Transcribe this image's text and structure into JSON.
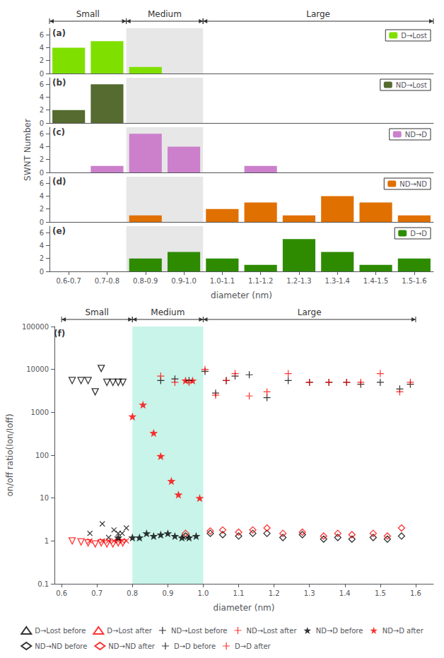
{
  "chart_data": [
    {
      "type": "bar",
      "title": "(a)",
      "categories": [
        "0.6-0.7",
        "0.7-0.8",
        "0.8-0.9",
        "0.9-1.0",
        "1.0-1.1",
        "1.1-1.2",
        "1.2-1.3",
        "1.3-1.4",
        "1.4-1.5",
        "1.5-1.6"
      ],
      "series": [
        {
          "name": "D→Lost",
          "color": "#7FE000",
          "values": [
            4,
            5,
            1,
            0,
            0,
            0,
            0,
            0,
            0,
            0
          ]
        }
      ],
      "ylim": [
        0,
        7
      ],
      "yticks": [
        0,
        2,
        4,
        6
      ],
      "grid": false,
      "legend": "upper right",
      "tick_labels": "y",
      "regions": [
        {
          "label": "Small",
          "from": "0.6-0.7",
          "to": "0.7-0.8"
        },
        {
          "label": "Medium",
          "from": "0.8-0.9",
          "to": "0.9-1.0",
          "color": "#D3D3D3"
        },
        {
          "label": "Large",
          "from": "1.0-1.1",
          "to": "1.5-1.6"
        }
      ]
    },
    {
      "type": "bar",
      "title": "(b)",
      "categories": [
        "0.6-0.7",
        "0.7-0.8",
        "0.8-0.9",
        "0.9-1.0",
        "1.0-1.1",
        "1.1-1.2",
        "1.2-1.3",
        "1.3-1.4",
        "1.4-1.5",
        "1.5-1.6"
      ],
      "series": [
        {
          "name": "ND→Lost",
          "color": "#556B2F",
          "values": [
            2,
            6,
            0,
            0,
            0,
            0,
            0,
            0,
            0,
            0
          ]
        }
      ],
      "ylim": [
        0,
        7
      ],
      "yticks": [
        0,
        2,
        4,
        6
      ],
      "grid": false,
      "legend": "upper right",
      "tick_labels": "y",
      "regions": [
        {
          "from": "0.8-0.9",
          "to": "0.9-1.0",
          "color": "#D3D3D3"
        }
      ]
    },
    {
      "type": "bar",
      "title": "(c)",
      "ylabel": "SWNT Number",
      "categories": [
        "0.6-0.7",
        "0.7-0.8",
        "0.8-0.9",
        "0.9-1.0",
        "1.0-1.1",
        "1.1-1.2",
        "1.2-1.3",
        "1.3-1.4",
        "1.4-1.5",
        "1.5-1.6"
      ],
      "series": [
        {
          "name": "ND→D",
          "color": "#CC80CC",
          "values": [
            0,
            1,
            6,
            4,
            0,
            1,
            0,
            0,
            0,
            0
          ]
        }
      ],
      "ylim": [
        0,
        7
      ],
      "yticks": [
        0,
        2,
        4,
        6
      ],
      "grid": false,
      "legend": "upper right",
      "tick_labels": "y",
      "regions": [
        {
          "from": "0.8-0.9",
          "to": "0.9-1.0",
          "color": "#D3D3D3"
        }
      ]
    },
    {
      "type": "bar",
      "title": "(d)",
      "categories": [
        "0.6-0.7",
        "0.7-0.8",
        "0.8-0.9",
        "0.9-1.0",
        "1.0-1.1",
        "1.1-1.2",
        "1.2-1.3",
        "1.3-1.4",
        "1.4-1.5",
        "1.5-1.6"
      ],
      "series": [
        {
          "name": "ND→ND",
          "color": "#E07000",
          "values": [
            0,
            0,
            1,
            0,
            2,
            3,
            1,
            4,
            3,
            1
          ]
        }
      ],
      "ylim": [
        0,
        7
      ],
      "yticks": [
        0,
        2,
        4,
        6
      ],
      "grid": false,
      "legend": "upper right",
      "tick_labels": "y",
      "regions": [
        {
          "from": "0.8-0.9",
          "to": "0.9-1.0",
          "color": "#D3D3D3"
        }
      ]
    },
    {
      "type": "bar",
      "title": "(e)",
      "xlabel": "diameter (nm)",
      "categories": [
        "0.6-0.7",
        "0.7-0.8",
        "0.8-0.9",
        "0.9-1.0",
        "1.0-1.1",
        "1.1-1.2",
        "1.2-1.3",
        "1.3-1.4",
        "1.4-1.5",
        "1.5-1.6"
      ],
      "series": [
        {
          "name": "D→D",
          "color": "#2E8B00",
          "values": [
            0,
            0,
            2,
            3,
            2,
            1,
            5,
            3,
            1,
            2
          ]
        }
      ],
      "ylim": [
        0,
        7
      ],
      "yticks": [
        0,
        2,
        4,
        6
      ],
      "grid": false,
      "legend": "upper right",
      "regions": [
        {
          "from": "0.8-0.9",
          "to": "0.9-1.0",
          "color": "#D3D3D3"
        }
      ]
    },
    {
      "type": "scatter",
      "title": "(f)",
      "xlabel": "diameter (nm)",
      "ylabel": "on/off ratio(Ion/Ioff)",
      "log": "y",
      "xlim": [
        0.58,
        1.65
      ],
      "xticks": [
        0.6,
        0.7,
        0.8,
        0.9,
        {
          "value": 1.0,
          "label": "1.0"
        },
        1.1,
        1.2,
        1.3,
        1.4,
        1.5,
        1.6
      ],
      "ylim": [
        0.1,
        100000
      ],
      "yticks": [
        0.1,
        1,
        10,
        100,
        1000,
        10000,
        100000
      ],
      "grid": false,
      "legend": "bottom",
      "regions": [
        {
          "label": "Small",
          "x": [
            0.6,
            0.8
          ]
        },
        {
          "label": "Medium",
          "x": [
            0.8,
            1.0
          ],
          "color": "#AAEEDD"
        },
        {
          "label": "Large",
          "x": [
            1.0,
            1.6
          ]
        }
      ],
      "series": [
        {
          "name": "D→Lost before",
          "color": "black",
          "marker": "open_triangle_down",
          "x": [
            0.63,
            0.655,
            0.675,
            0.695,
            0.712,
            0.728,
            0.745,
            0.76,
            0.773
          ],
          "values": [
            5500,
            5500,
            5500,
            3000,
            10500,
            5000,
            5000,
            5000,
            5000
          ]
        },
        {
          "name": "D→Lost after",
          "color": "red",
          "marker": "open_triangle_down",
          "x": [
            0.63,
            0.655,
            0.675,
            0.695,
            0.712,
            0.728,
            0.745,
            0.76,
            0.773
          ],
          "values": [
            1.0,
            0.95,
            0.9,
            0.85,
            0.9,
            0.85,
            0.85,
            0.9,
            0.9
          ]
        },
        {
          "name": "ND→Lost before",
          "color": "black",
          "marker": "x",
          "x": [
            0.68,
            0.715,
            0.733,
            0.748,
            0.76,
            0.771,
            0.783
          ],
          "values": [
            1.5,
            2.5,
            1.2,
            1.8,
            1.5,
            1.5,
            2.0
          ]
        },
        {
          "name": "ND→Lost after",
          "color": "red",
          "marker": "x",
          "x": [
            0.68,
            0.715,
            0.733,
            0.748,
            0.76,
            0.771,
            0.783
          ],
          "values": [
            1.0,
            1.0,
            1.0,
            1.0,
            1.0,
            1.0,
            1.0
          ]
        },
        {
          "name": "ND→D before",
          "color": "black",
          "marker": "star",
          "x": [
            0.76,
            0.8,
            0.82,
            0.84,
            0.86,
            0.88,
            0.9,
            0.92,
            0.94,
            0.96,
            0.98
          ],
          "values": [
            1.2,
            1.2,
            1.2,
            1.5,
            1.3,
            1.4,
            1.5,
            1.3,
            1.2,
            1.2,
            1.3
          ]
        },
        {
          "name": "ND→D after",
          "color": "red",
          "marker": "star",
          "x": [
            0.8,
            0.83,
            0.86,
            0.88,
            0.91,
            0.93,
            0.95,
            0.97,
            0.99
          ],
          "values": [
            800,
            1500,
            330,
            95,
            25,
            12,
            5500,
            5500,
            10
          ]
        },
        {
          "name": "ND→ND before",
          "color": "black",
          "marker": "open_diamond",
          "x": [
            0.95,
            1.02,
            1.055,
            1.1,
            1.14,
            1.18,
            1.225,
            1.28,
            1.34,
            1.38,
            1.42,
            1.48,
            1.52,
            1.56
          ],
          "values": [
            1.3,
            1.5,
            1.4,
            1.3,
            1.5,
            1.5,
            1.2,
            1.4,
            1.1,
            1.2,
            1.1,
            1.2,
            1.1,
            1.3
          ]
        },
        {
          "name": "ND→ND after",
          "color": "red",
          "marker": "open_diamond",
          "x": [
            0.95,
            1.02,
            1.055,
            1.1,
            1.14,
            1.18,
            1.225,
            1.28,
            1.34,
            1.38,
            1.42,
            1.48,
            1.52,
            1.56
          ],
          "values": [
            1.5,
            1.7,
            1.8,
            1.6,
            1.8,
            2.0,
            1.5,
            1.6,
            1.3,
            1.5,
            1.4,
            1.5,
            1.3,
            2.0
          ]
        },
        {
          "name": "D→D before",
          "color": "black",
          "marker": "plus",
          "x": [
            0.88,
            0.92,
            0.96,
            1.005,
            1.035,
            1.065,
            1.09,
            1.13,
            1.18,
            1.24,
            1.3,
            1.355,
            1.405,
            1.445,
            1.5,
            1.555,
            1.585
          ],
          "values": [
            5500,
            6000,
            5500,
            9000,
            2800,
            5500,
            7000,
            7500,
            2200,
            5500,
            5000,
            5000,
            5000,
            4500,
            5000,
            3500,
            4500
          ]
        },
        {
          "name": "D→D after",
          "color": "red",
          "marker": "plus",
          "x": [
            0.88,
            0.92,
            0.96,
            1.005,
            1.035,
            1.065,
            1.09,
            1.13,
            1.18,
            1.24,
            1.3,
            1.355,
            1.405,
            1.445,
            1.5,
            1.555,
            1.585
          ],
          "values": [
            7000,
            5000,
            5000,
            10000,
            2500,
            5500,
            8000,
            2400,
            3000,
            8000,
            5000,
            5000,
            5000,
            5000,
            8000,
            3000,
            5000
          ]
        }
      ]
    }
  ]
}
